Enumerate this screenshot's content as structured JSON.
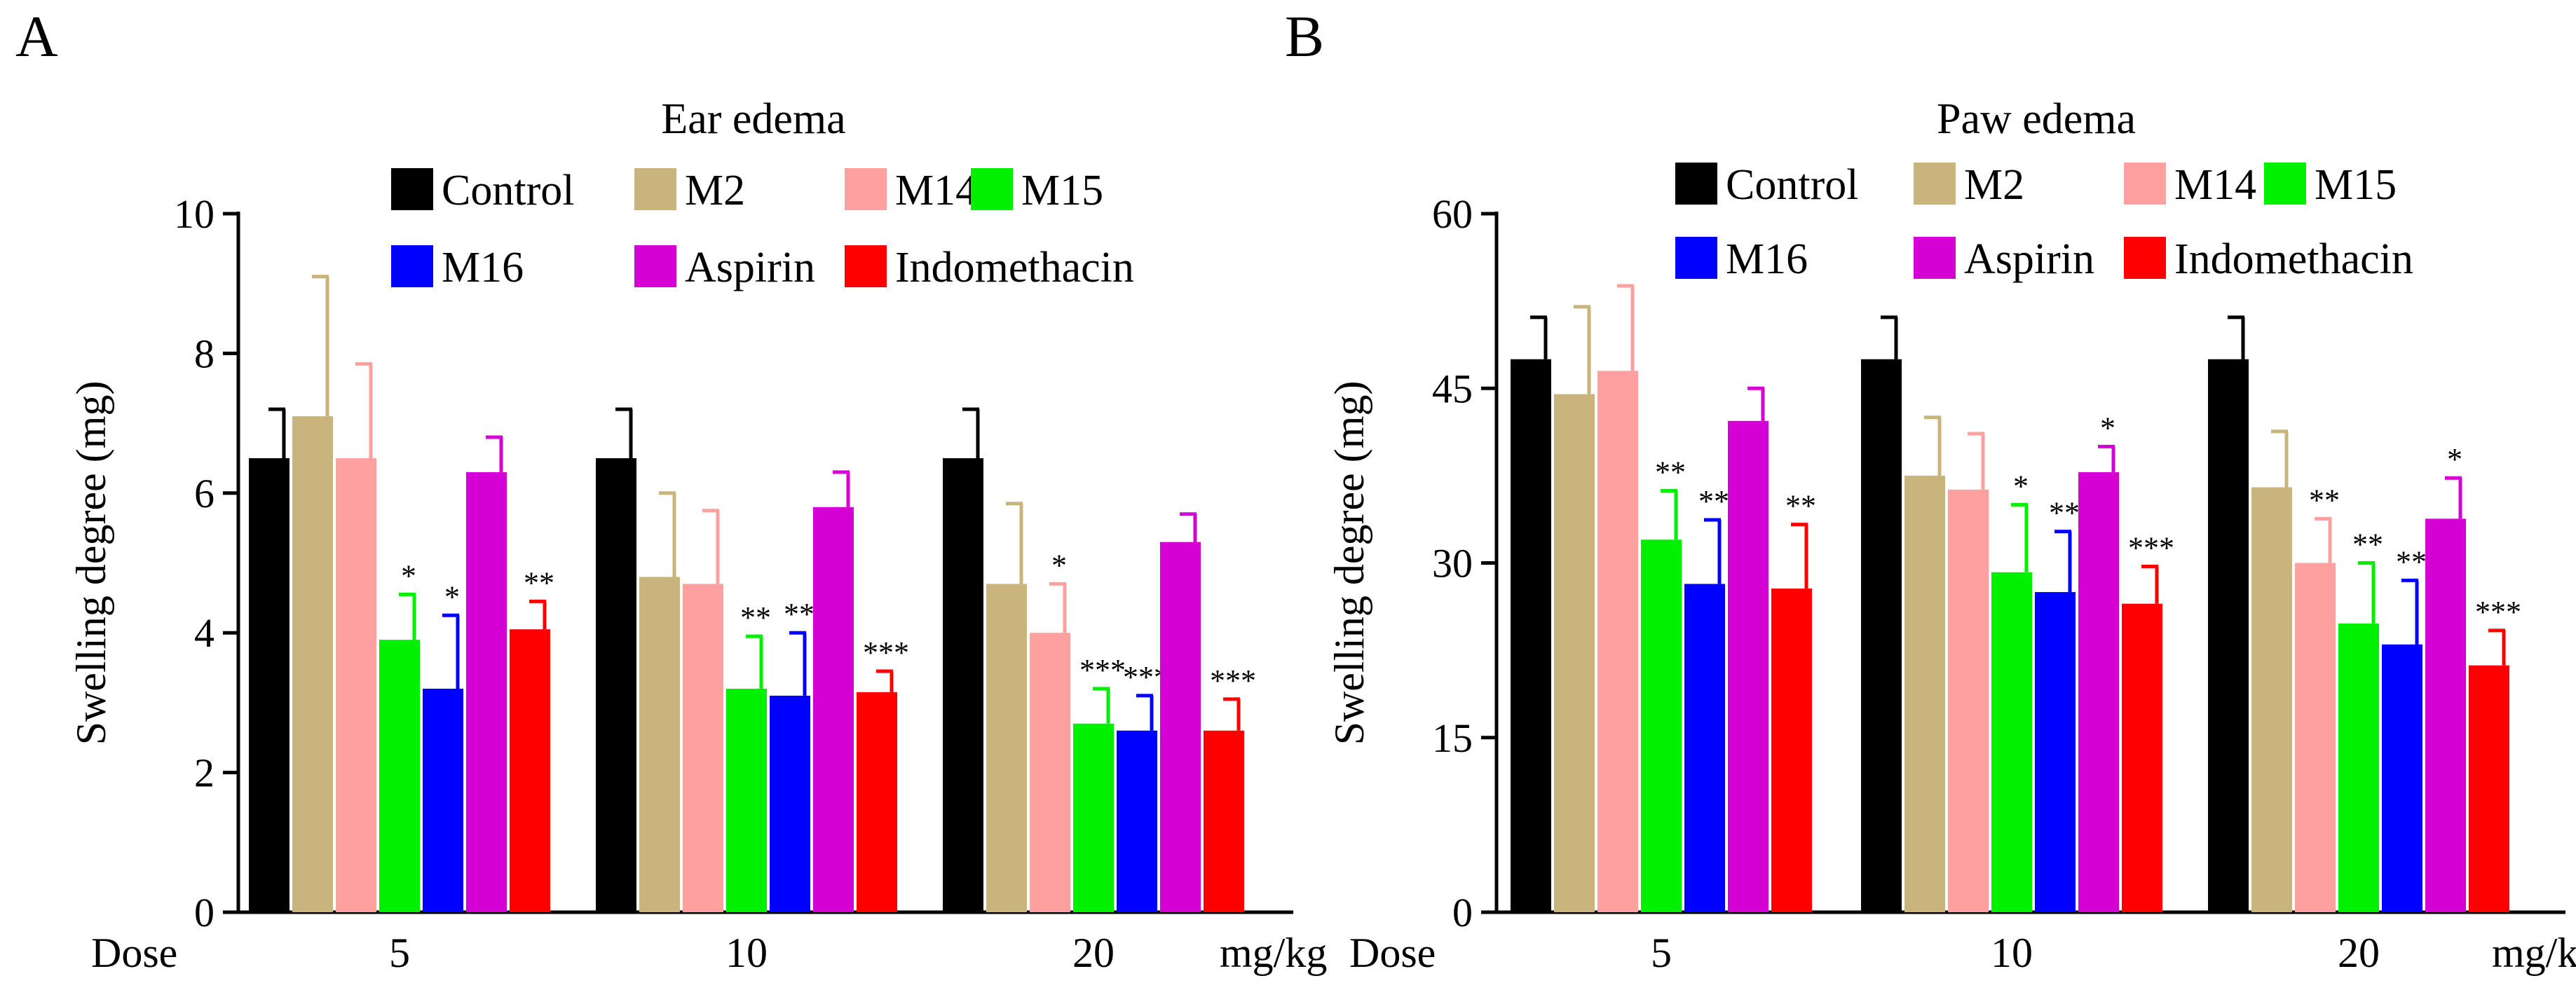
{
  "chart_data": [
    {
      "type": "bar",
      "panel_label": "A",
      "title": "Ear edema",
      "xlabel": "Dose",
      "x_unit": "mg/kg",
      "ylabel": "Swelling degree (mg)",
      "ylim": [
        0,
        10
      ],
      "yticks": [
        "0",
        "2",
        "4",
        "6",
        "8",
        "10"
      ],
      "categories": [
        "5",
        "10",
        "20"
      ],
      "series": [
        {
          "name": "Control",
          "color": "#000000",
          "values": [
            6.5,
            6.5,
            6.5
          ],
          "errors": [
            0.7,
            0.7,
            0.7
          ],
          "sig": [
            "",
            "",
            ""
          ]
        },
        {
          "name": "M2",
          "color": "#c8b47c",
          "values": [
            7.1,
            4.8,
            4.7
          ],
          "errors": [
            2.0,
            1.2,
            1.15
          ],
          "sig": [
            "",
            "",
            ""
          ]
        },
        {
          "name": "M14",
          "color": "#ffa0a0",
          "values": [
            6.5,
            4.7,
            4.0
          ],
          "errors": [
            1.35,
            1.05,
            0.7
          ],
          "sig": [
            "",
            "",
            "*"
          ]
        },
        {
          "name": "M15",
          "color": "#00f000",
          "values": [
            3.9,
            3.2,
            2.7
          ],
          "errors": [
            0.65,
            0.75,
            0.5
          ],
          "sig": [
            "*",
            "**",
            "***"
          ]
        },
        {
          "name": "M16",
          "color": "#0000ff",
          "values": [
            3.2,
            3.1,
            2.6
          ],
          "errors": [
            1.05,
            0.9,
            0.5
          ],
          "sig": [
            "*",
            "**",
            "***"
          ]
        },
        {
          "name": "Aspirin",
          "color": "#d400d4",
          "values": [
            6.3,
            5.8,
            5.3
          ],
          "errors": [
            0.5,
            0.5,
            0.4
          ],
          "sig": [
            "",
            "",
            ""
          ]
        },
        {
          "name": "Indomethacin",
          "color": "#ff0000",
          "values": [
            4.05,
            3.15,
            2.6
          ],
          "errors": [
            0.4,
            0.3,
            0.45
          ],
          "sig": [
            "**",
            "***",
            "***"
          ]
        }
      ]
    },
    {
      "type": "bar",
      "panel_label": "B",
      "title": "Paw edema",
      "xlabel": "Dose",
      "x_unit": "mg/kg",
      "ylabel": "Swelling degree (mg)",
      "ylim": [
        0,
        60
      ],
      "yticks": [
        "0",
        "15",
        "30",
        "45",
        "60"
      ],
      "categories": [
        "5",
        "10",
        "20"
      ],
      "series": [
        {
          "name": "Control",
          "color": "#000000",
          "values": [
            47.5,
            47.5,
            47.5
          ],
          "errors": [
            3.6,
            3.6,
            3.6
          ],
          "sig": [
            "",
            "",
            ""
          ]
        },
        {
          "name": "M2",
          "color": "#c8b47c",
          "values": [
            44.5,
            37.5,
            36.5
          ],
          "errors": [
            7.5,
            5.0,
            4.8
          ],
          "sig": [
            "",
            "",
            ""
          ]
        },
        {
          "name": "M14",
          "color": "#ffa0a0",
          "values": [
            46.5,
            36.3,
            30.0
          ],
          "errors": [
            7.3,
            4.8,
            3.8
          ],
          "sig": [
            "",
            "",
            "**"
          ]
        },
        {
          "name": "M15",
          "color": "#00f000",
          "values": [
            32.0,
            29.2,
            24.8
          ],
          "errors": [
            4.2,
            5.8,
            5.2
          ],
          "sig": [
            "**",
            "*",
            "**"
          ]
        },
        {
          "name": "M16",
          "color": "#0000ff",
          "values": [
            28.2,
            27.5,
            23.0
          ],
          "errors": [
            5.5,
            5.2,
            5.5
          ],
          "sig": [
            "**",
            "**",
            "**"
          ]
        },
        {
          "name": "Aspirin",
          "color": "#d400d4",
          "values": [
            42.2,
            37.8,
            33.8
          ],
          "errors": [
            2.8,
            2.2,
            3.5
          ],
          "sig": [
            "",
            "*",
            "*"
          ]
        },
        {
          "name": "Indomethacin",
          "color": "#ff0000",
          "values": [
            27.8,
            26.5,
            21.2
          ],
          "errors": [
            5.5,
            3.2,
            3.0
          ],
          "sig": [
            "**",
            "***",
            "***"
          ]
        }
      ]
    }
  ]
}
